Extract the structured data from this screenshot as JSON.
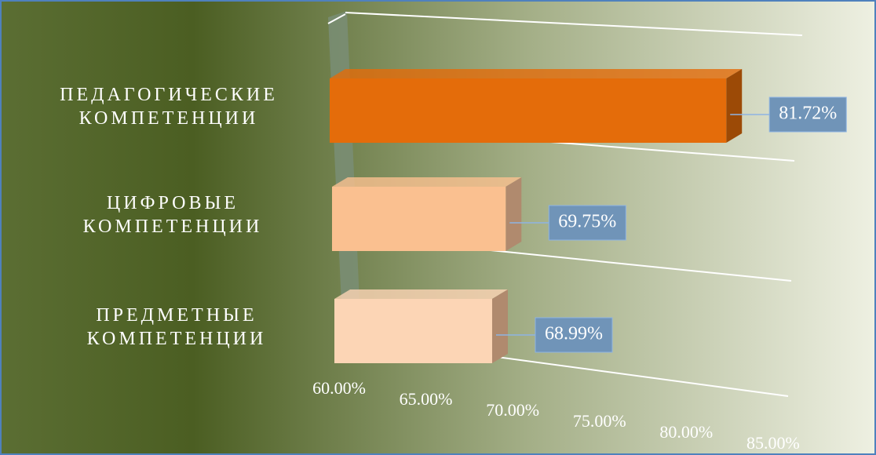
{
  "chart_data": {
    "type": "bar3d",
    "categories": [
      "ПЕДАГОГИЧЕСКИЕ КОМПЕТЕНЦИИ",
      "ЦИФРОВЫЕ КОМПЕТЕНЦИИ",
      "ПРЕДМЕТНЫЕ КОМПЕТЕНЦИИ"
    ],
    "values": [
      81.72,
      69.75,
      68.99
    ],
    "value_labels": [
      "81.72%",
      "69.75%",
      "68.99%"
    ],
    "colors": [
      "#e46c0a",
      "#fac090",
      "#fcd5b5"
    ],
    "xlim": [
      60,
      85
    ],
    "xticks": [
      {
        "value": 60,
        "label": "60.00%"
      },
      {
        "value": 65,
        "label": "65.00%"
      },
      {
        "value": 70,
        "label": "70.00%"
      },
      {
        "value": 75,
        "label": "75.00%"
      },
      {
        "value": 80,
        "label": "80.00%"
      },
      {
        "value": 85,
        "label": "85.00%"
      }
    ]
  }
}
